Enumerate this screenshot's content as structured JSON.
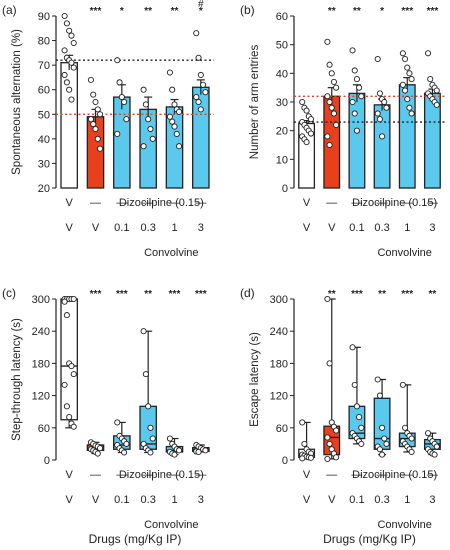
{
  "colors": {
    "vehicle": "#ffffff",
    "dizocilpine": "#e8401c",
    "convolvine": "#5bc8ee",
    "outline": "#222222",
    "ref_dotted": "#222222",
    "ref_red": "#e8401c"
  },
  "x_rows": {
    "row1": [
      "V",
      "—",
      "—",
      "—",
      "—",
      "—"
    ],
    "row2": [
      "V",
      "V",
      "0.1",
      "0.3",
      "1",
      "3"
    ],
    "dizocilpine_label": "Dizocilpine (0.15)",
    "convolvine_label": "Convolvine",
    "drugs_label": "Drugs (mg/Kg IP)"
  },
  "chart_data": [
    {
      "panel": "(a)",
      "type": "bar",
      "ylabel": "Spontaneous alternation (%)",
      "ylim": [
        20,
        90
      ],
      "yticks": [
        20,
        30,
        40,
        50,
        60,
        70,
        80,
        90
      ],
      "values": [
        71,
        49,
        57,
        52,
        53,
        61
      ],
      "errors": [
        3,
        3,
        5,
        5,
        3,
        3
      ],
      "significance": [
        "",
        "***",
        "*",
        "**",
        "**",
        "*"
      ],
      "extra_marks": [
        "",
        "",
        "",
        "",
        "",
        "#"
      ],
      "ref_dotted": 72,
      "ref_red": 50,
      "points": [
        [
          90,
          87,
          84,
          82,
          79,
          76,
          73,
          72,
          71,
          69,
          66,
          63,
          60,
          56
        ],
        [
          64,
          58,
          55,
          52,
          50,
          48,
          46,
          44,
          40,
          36
        ],
        [
          72,
          63,
          57,
          55,
          48,
          42
        ],
        [
          60,
          54,
          48,
          44,
          40,
          37
        ],
        [
          67,
          60,
          54,
          52,
          51,
          49,
          47,
          45,
          42,
          37
        ],
        [
          83,
          73,
          66,
          62,
          59,
          57,
          55,
          52
        ]
      ]
    },
    {
      "panel": "(b)",
      "type": "bar",
      "ylabel": "Number of arm entries",
      "ylim": [
        0,
        60
      ],
      "yticks": [
        0,
        10,
        20,
        30,
        40,
        50,
        60
      ],
      "values": [
        22.5,
        32,
        33,
        29,
        36,
        33
      ],
      "errors": [
        1,
        3,
        3,
        2,
        2.5,
        1.5
      ],
      "significance": [
        "",
        "**",
        "**",
        "*",
        "***",
        "***"
      ],
      "ref_dotted": 23,
      "ref_red": 32,
      "points": [
        [
          30,
          28,
          27,
          25,
          24,
          23,
          22,
          21,
          20,
          19,
          18,
          17,
          16
        ],
        [
          51,
          43,
          40,
          37,
          35,
          32,
          30,
          28,
          26,
          22,
          18,
          15
        ],
        [
          48,
          41,
          38,
          35,
          32,
          30,
          26,
          20
        ],
        [
          45,
          33,
          31,
          30,
          28,
          26,
          24,
          18
        ],
        [
          47,
          45,
          42,
          40,
          38,
          36,
          34,
          31,
          28,
          26
        ],
        [
          47,
          38,
          36,
          35,
          34,
          33,
          32,
          31,
          30,
          29
        ]
      ]
    },
    {
      "panel": "(c)",
      "type": "box",
      "ylabel": "Step-through latency (s)",
      "ylim": [
        0,
        300
      ],
      "yticks": [
        0,
        60,
        120,
        180,
        240,
        300
      ],
      "boxes": [
        {
          "q1": 75,
          "median": 175,
          "q3": 300,
          "min": 60,
          "max": 300
        },
        {
          "q1": 18,
          "median": 22,
          "q3": 28,
          "min": 12,
          "max": 33
        },
        {
          "q1": 20,
          "median": 28,
          "q3": 45,
          "min": 14,
          "max": 70
        },
        {
          "q1": 20,
          "median": 30,
          "q3": 100,
          "min": 14,
          "max": 240
        },
        {
          "q1": 15,
          "median": 18,
          "q3": 25,
          "min": 10,
          "max": 40
        },
        {
          "q1": 16,
          "median": 20,
          "q3": 23,
          "min": 15,
          "max": 28
        }
      ],
      "significance": [
        "",
        "***",
        "***",
        "**",
        "***",
        "***"
      ],
      "points": [
        [
          300,
          300,
          300,
          300,
          300,
          295,
          270,
          180,
          175,
          160,
          140,
          100,
          80,
          68,
          62
        ],
        [
          33,
          30,
          27,
          25,
          22,
          20,
          18,
          15,
          12
        ],
        [
          70,
          45,
          40,
          35,
          30,
          28,
          22,
          18,
          14
        ],
        [
          240,
          160,
          100,
          60,
          40,
          30,
          22,
          18,
          14
        ],
        [
          40,
          30,
          25,
          20,
          18,
          15,
          12,
          10
        ],
        [
          28,
          25,
          22,
          20,
          18,
          16,
          15
        ]
      ]
    },
    {
      "panel": "(d)",
      "type": "box",
      "ylabel": "Escape latency (s)",
      "ylim": [
        0,
        300
      ],
      "yticks": [
        0,
        60,
        120,
        180,
        240,
        300
      ],
      "boxes": [
        {
          "q1": 5,
          "median": 10,
          "q3": 20,
          "min": 2,
          "max": 70
        },
        {
          "q1": 10,
          "median": 42,
          "q3": 63,
          "min": 2,
          "max": 300
        },
        {
          "q1": 40,
          "median": 50,
          "q3": 100,
          "min": 30,
          "max": 210
        },
        {
          "q1": 20,
          "median": 40,
          "q3": 115,
          "min": 10,
          "max": 150
        },
        {
          "q1": 25,
          "median": 40,
          "q3": 50,
          "min": 15,
          "max": 140
        },
        {
          "q1": 20,
          "median": 30,
          "q3": 38,
          "min": 10,
          "max": 50
        }
      ],
      "significance": [
        "",
        "**",
        "***",
        "**",
        "***",
        "**"
      ],
      "points": [
        [
          70,
          30,
          20,
          15,
          12,
          10,
          8,
          6,
          5,
          4,
          3
        ],
        [
          300,
          180,
          70,
          62,
          55,
          42,
          30,
          20,
          12,
          5,
          2
        ],
        [
          210,
          140,
          100,
          80,
          60,
          50,
          45,
          40,
          35,
          30
        ],
        [
          150,
          120,
          60,
          40,
          30,
          25,
          20,
          10
        ],
        [
          140,
          60,
          50,
          45,
          40,
          35,
          30,
          25,
          20,
          15
        ],
        [
          50,
          40,
          35,
          30,
          25,
          20,
          15,
          12,
          10
        ]
      ]
    }
  ]
}
